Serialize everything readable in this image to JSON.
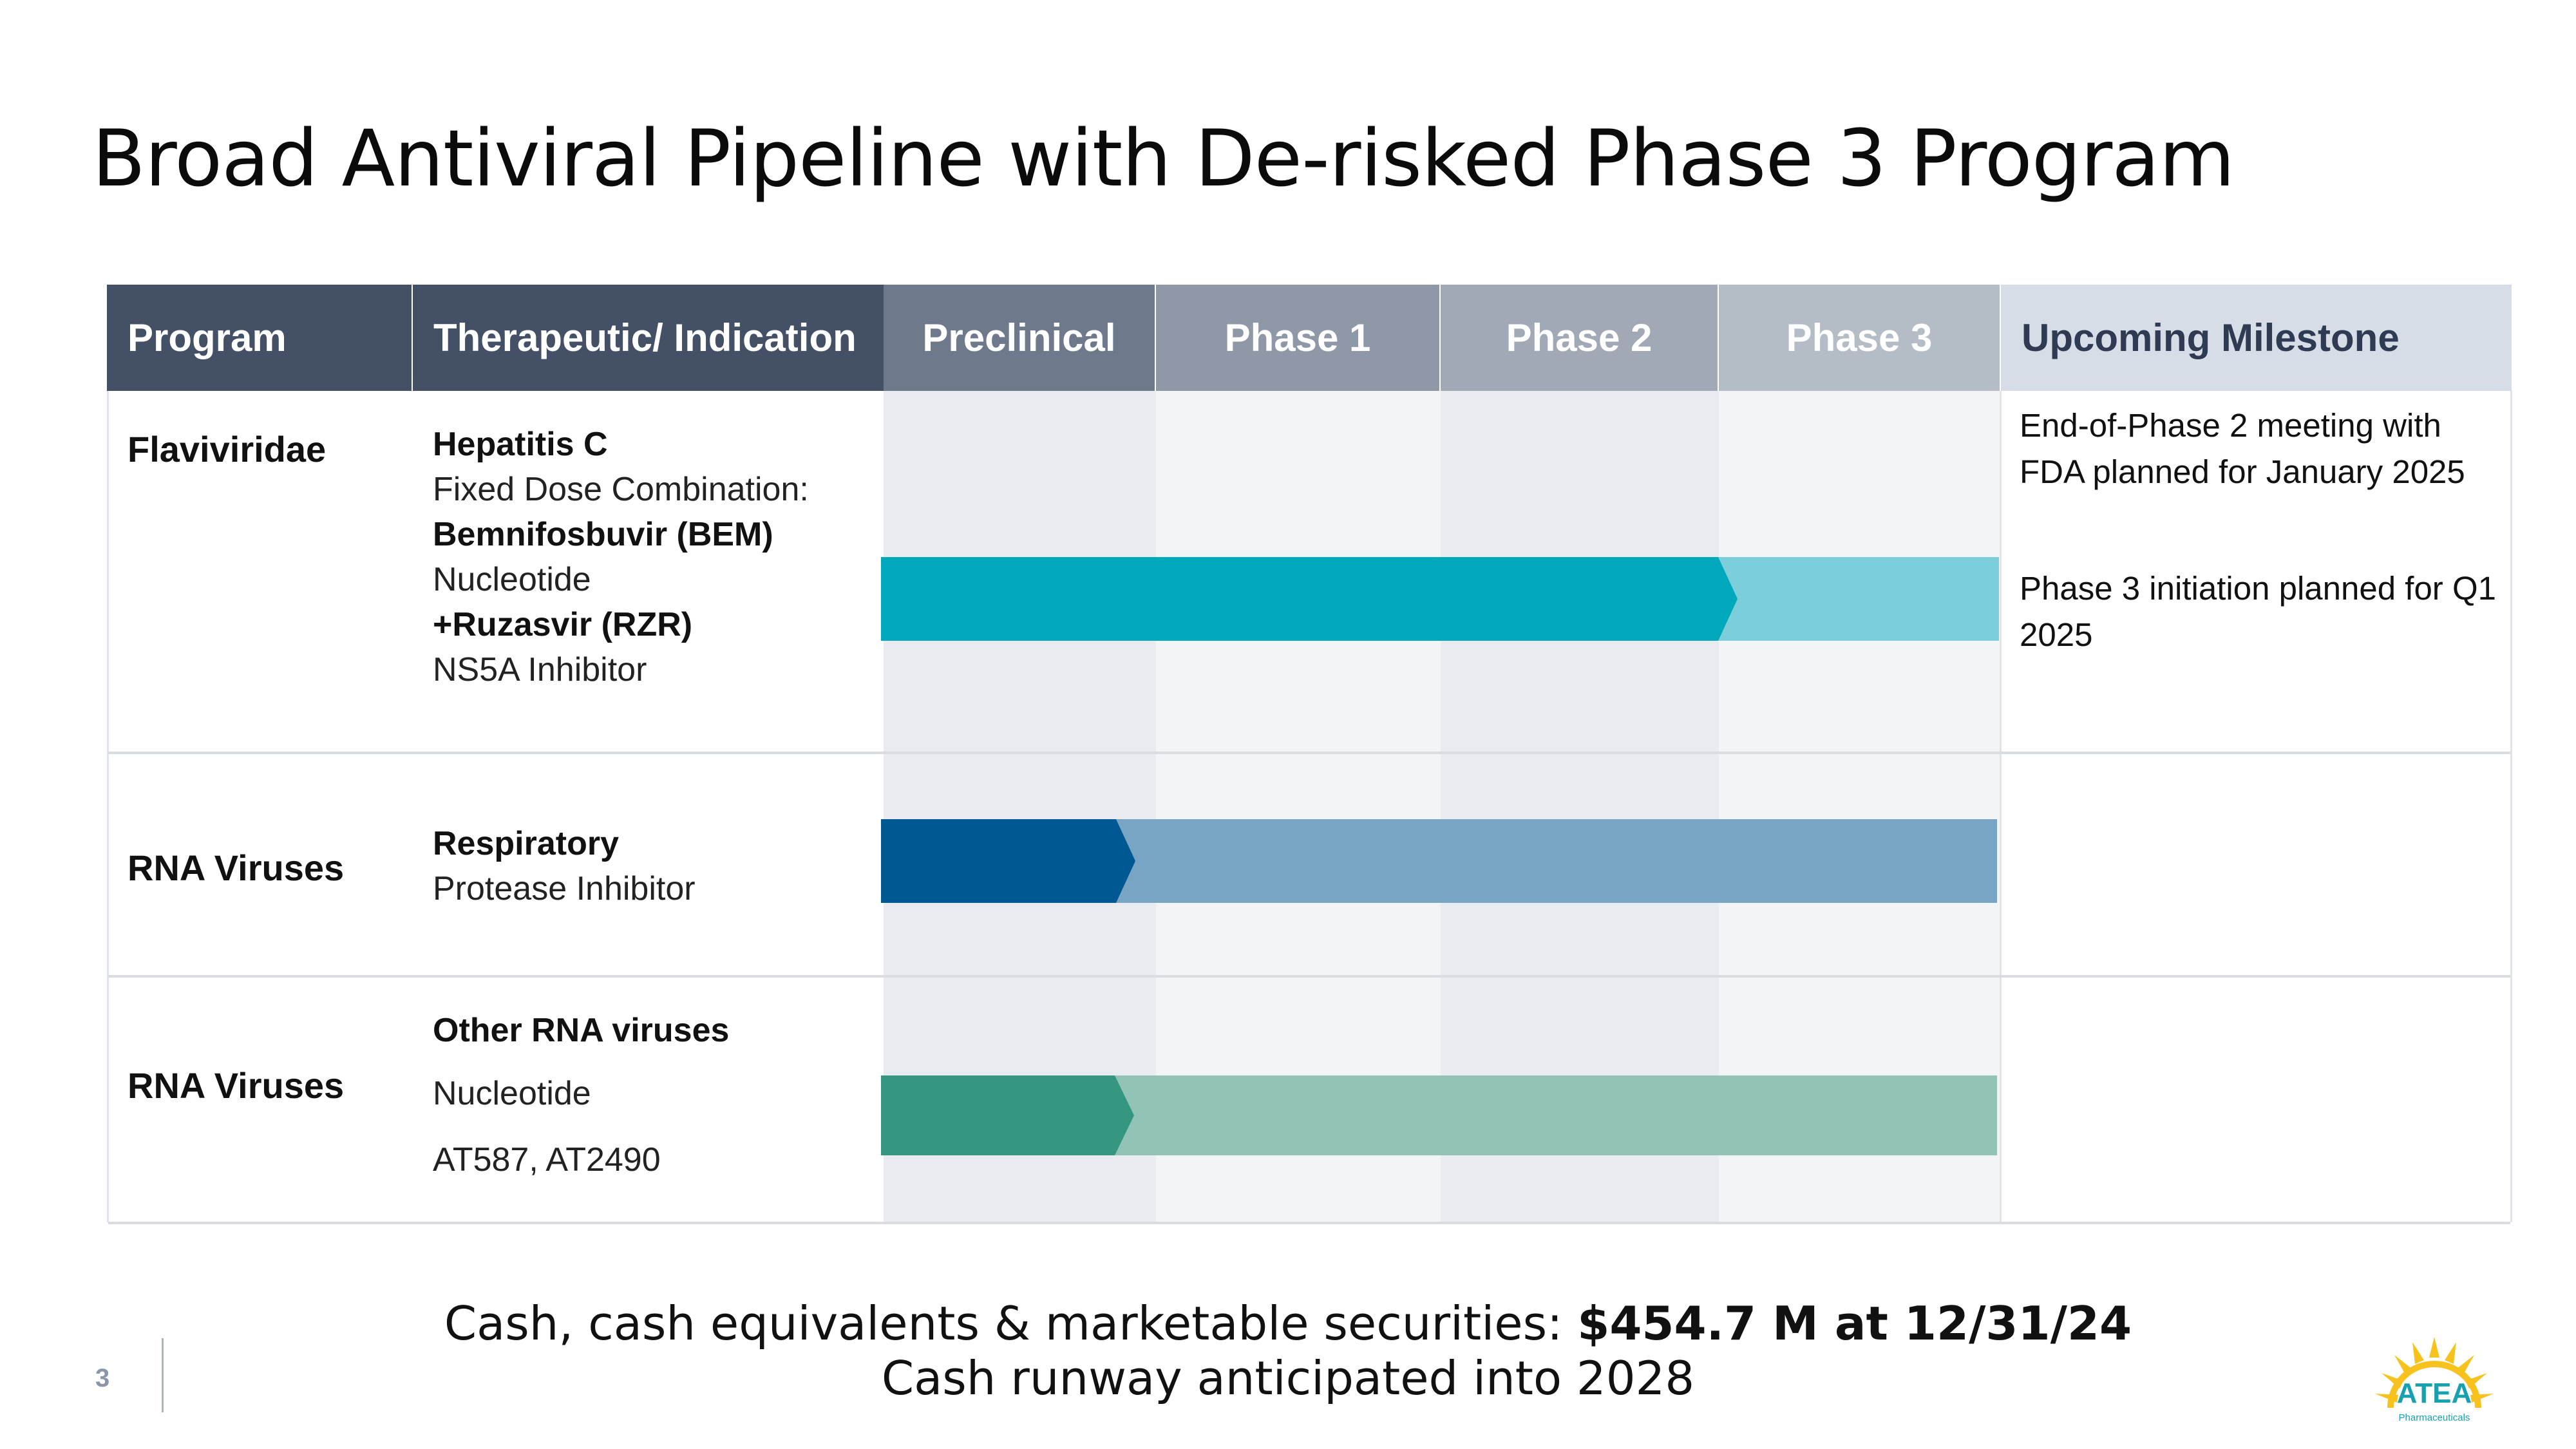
{
  "title": "Broad Antiviral Pipeline with De-risked Phase 3 Program",
  "table": {
    "headers": {
      "program": "Program",
      "indication": "Therapeutic/ Indication",
      "preclinical": "Preclinical",
      "phase1": "Phase 1",
      "phase2": "Phase 2",
      "phase3": "Phase 3",
      "milestone": "Upcoming Milestone"
    },
    "rows": [
      {
        "program": "Flaviviridae",
        "indication": {
          "line1": "Hepatitis C",
          "line2": "Fixed Dose Combination:",
          "line3": "Bemnifosbuvir (BEM)",
          "line4": "Nucleotide",
          "line5_prefix": "+",
          "line5": "Ruzasvir (RZR)",
          "line6": "NS5A Inhibitor"
        },
        "progress": {
          "completed_stage": "Phase 2",
          "extends_to": "Phase 3"
        },
        "milestones": [
          "End-of-Phase 2 meeting with FDA planned for January 2025",
          "Phase 3 initiation planned for Q1 2025"
        ]
      },
      {
        "program": "RNA Viruses",
        "indication": {
          "line1": "Respiratory",
          "line2": "Protease Inhibitor"
        },
        "progress": {
          "completed_stage": "Preclinical",
          "extends_to": "Phase 3"
        }
      },
      {
        "program": "RNA Viruses",
        "indication": {
          "line1": "Other RNA viruses",
          "line2": "Nucleotide",
          "line3": "AT587, AT2490"
        },
        "progress": {
          "completed_stage": "Preclinical",
          "extends_to": "Phase 3"
        }
      }
    ]
  },
  "colors": {
    "header_dark": "#435066",
    "header_preclinical": "#6e7a8c",
    "header_phase1": "#8e98a6",
    "header_phase2": "#a0a9b5",
    "header_phase3": "#b4bcc6",
    "header_milestone": "#d7dde6",
    "hcv_bar": "#00a8bc",
    "hcv_bar_light": "#7ccfda",
    "resp_bar": "#005893",
    "resp_bar_light": "#79a5c5",
    "rna_bar": "#35977f",
    "rna_bar_light": "#91c3b7"
  },
  "footer": {
    "cash_prefix": "Cash, cash equivalents & marketable securities: ",
    "cash_value": "$454.7 M at 12/31/24",
    "runway": "Cash runway anticipated into 2028"
  },
  "page_number": "3",
  "logo": {
    "name": "ATEA",
    "subtitle": "Pharmaceuticals"
  }
}
